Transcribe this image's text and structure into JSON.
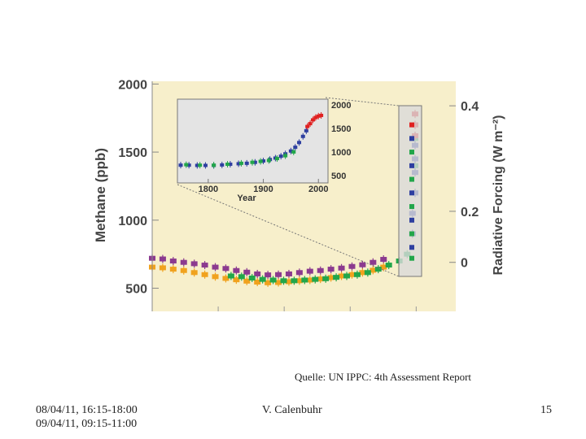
{
  "footer": {
    "caption": "Quelle: UN IPPC: 4th Assessment Report",
    "date_line1": "08/04/11, 16:15-18:00",
    "date_line2": "09/04/11, 09:15-11:00",
    "author": "V. Calenbuhr",
    "page_number": "15"
  },
  "colors": {
    "panel_bg": "#f7efcb",
    "inset_bg": "#e4e4e4",
    "purple": "#8b3a8f",
    "orange": "#f0a21e",
    "green": "#22a64a",
    "blue": "#2e3fa0",
    "red": "#e02020"
  },
  "chart_data": [
    {
      "type": "scatter",
      "title": "",
      "ylabel": "Methane (ppb)",
      "ylabel_right": "Radiative Forcing (W m⁻²)",
      "ylim": [
        330,
        2020
      ],
      "yticks": [
        "2000",
        "1500",
        "1000",
        "500"
      ],
      "right_ticks": [
        {
          "label": "0.4",
          "methane": 1840
        },
        {
          "label": "0.2",
          "methane": 1065
        },
        {
          "label": "0",
          "methane": 690
        }
      ],
      "xticks_count": 4,
      "grid": true,
      "series": [
        {
          "color": "purple",
          "x": [
            0,
            0.04,
            0.08,
            0.12,
            0.16,
            0.2,
            0.24,
            0.28,
            0.32,
            0.36,
            0.4,
            0.44,
            0.48,
            0.52,
            0.56,
            0.6,
            0.64,
            0.68,
            0.72,
            0.76,
            0.8,
            0.84,
            0.88
          ],
          "y": [
            720,
            715,
            700,
            690,
            680,
            670,
            655,
            645,
            630,
            618,
            605,
            598,
            600,
            605,
            615,
            625,
            630,
            640,
            648,
            660,
            672,
            690,
            712
          ]
        },
        {
          "color": "orange",
          "x": [
            0,
            0.04,
            0.08,
            0.12,
            0.16,
            0.2,
            0.24,
            0.28,
            0.32,
            0.36,
            0.4,
            0.44,
            0.48,
            0.52,
            0.56,
            0.6,
            0.64,
            0.68,
            0.72,
            0.76,
            0.8,
            0.84,
            0.88
          ],
          "y": [
            655,
            650,
            640,
            630,
            615,
            600,
            585,
            572,
            562,
            552,
            545,
            540,
            542,
            548,
            555,
            560,
            568,
            578,
            590,
            600,
            615,
            632,
            655
          ]
        },
        {
          "color": "green",
          "x": [
            0.3,
            0.34,
            0.38,
            0.42,
            0.46,
            0.5,
            0.54,
            0.58,
            0.62,
            0.66,
            0.7,
            0.74,
            0.78,
            0.82,
            0.86,
            0.9,
            0.94,
            0.97,
            0.99,
            1.0,
            1.0,
            1.0
          ],
          "y": [
            590,
            585,
            575,
            565,
            560,
            555,
            555,
            560,
            565,
            570,
            580,
            590,
            600,
            615,
            640,
            670,
            700,
            750,
            900,
            1200,
            1400,
            1600
          ]
        },
        {
          "color": "blue",
          "x": [
            0.99,
            0.99,
            1.0,
            1.0,
            1.0,
            1.0,
            1.0,
            1.0
          ],
          "y": [
            900,
            1050,
            1200,
            1350,
            1450,
            1550,
            1620,
            1700
          ]
        },
        {
          "color": "red",
          "x": [
            1.0,
            1.0,
            1.0
          ],
          "y": [
            1620,
            1700,
            1780
          ]
        }
      ]
    },
    {
      "type": "scatter",
      "title": "",
      "xlabel": "Year",
      "xlim": [
        1750,
        2010
      ],
      "xticks": [
        "1800",
        "1900",
        "2000"
      ],
      "ylim": [
        430,
        2050
      ],
      "yticks": [
        "2000",
        "1500",
        "1000",
        "500"
      ],
      "series": [
        {
          "color": "blue",
          "x": [
            1750,
            1765,
            1780,
            1795,
            1810,
            1825,
            1840,
            1855,
            1870,
            1885,
            1900,
            1912,
            1922,
            1932,
            1940,
            1950,
            1958,
            1965,
            1972,
            1978
          ],
          "y": [
            720,
            720,
            715,
            715,
            715,
            725,
            740,
            750,
            760,
            780,
            810,
            840,
            870,
            910,
            960,
            1020,
            1100,
            1200,
            1330,
            1450
          ]
        },
        {
          "color": "green",
          "x": [
            1760,
            1785,
            1810,
            1835,
            1860,
            1880,
            1895,
            1910,
            1925,
            1940,
            1955
          ],
          "y": [
            730,
            720,
            720,
            740,
            760,
            780,
            800,
            820,
            860,
            920,
            1000
          ]
        },
        {
          "color": "red",
          "x": [
            1980,
            1985,
            1990,
            1995,
            2000,
            2005
          ],
          "y": [
            1540,
            1600,
            1680,
            1730,
            1760,
            1775
          ]
        }
      ]
    }
  ]
}
